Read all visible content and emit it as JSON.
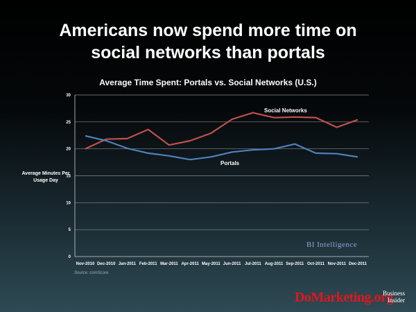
{
  "slide": {
    "title_line1": "Americans now spend more time on",
    "title_line2": "social networks than portals"
  },
  "source": "Source: comScore",
  "branding": {
    "bi": "BI Intelligence",
    "watermark": "DoMarketing.org",
    "logo_line1": "Business",
    "logo_line2": "Insider"
  },
  "chart_data": {
    "type": "line",
    "title": "Average Time Spent: Portals vs. Social Networks (U.S.)",
    "xlabel": "",
    "ylabel": "Average Minutes Per Usage Day",
    "ylim": [
      0,
      30
    ],
    "yticks": [
      0,
      5,
      10,
      15,
      20,
      25,
      30
    ],
    "grid": true,
    "categories": [
      "Nov-2010",
      "Dec-2010",
      "Jan-2011",
      "Feb-2011",
      "Mar-2011",
      "Apr-2011",
      "May-2011",
      "Jun-2011",
      "Jul-2011",
      "Aug-2011",
      "Sep-2011",
      "Oct-2011",
      "Nov-2011",
      "Dec-2011"
    ],
    "series": [
      {
        "name": "Social Networks",
        "color": "#c0504d",
        "values": [
          20.0,
          21.8,
          21.9,
          23.6,
          20.7,
          21.5,
          22.9,
          25.5,
          26.7,
          25.8,
          25.9,
          25.8,
          24.0,
          25.4
        ]
      },
      {
        "name": "Portals",
        "color": "#4f81bd",
        "values": [
          22.4,
          21.5,
          20.1,
          19.2,
          18.7,
          18.0,
          18.5,
          19.4,
          19.8,
          20.0,
          20.9,
          19.2,
          19.1,
          18.5
        ]
      }
    ]
  }
}
